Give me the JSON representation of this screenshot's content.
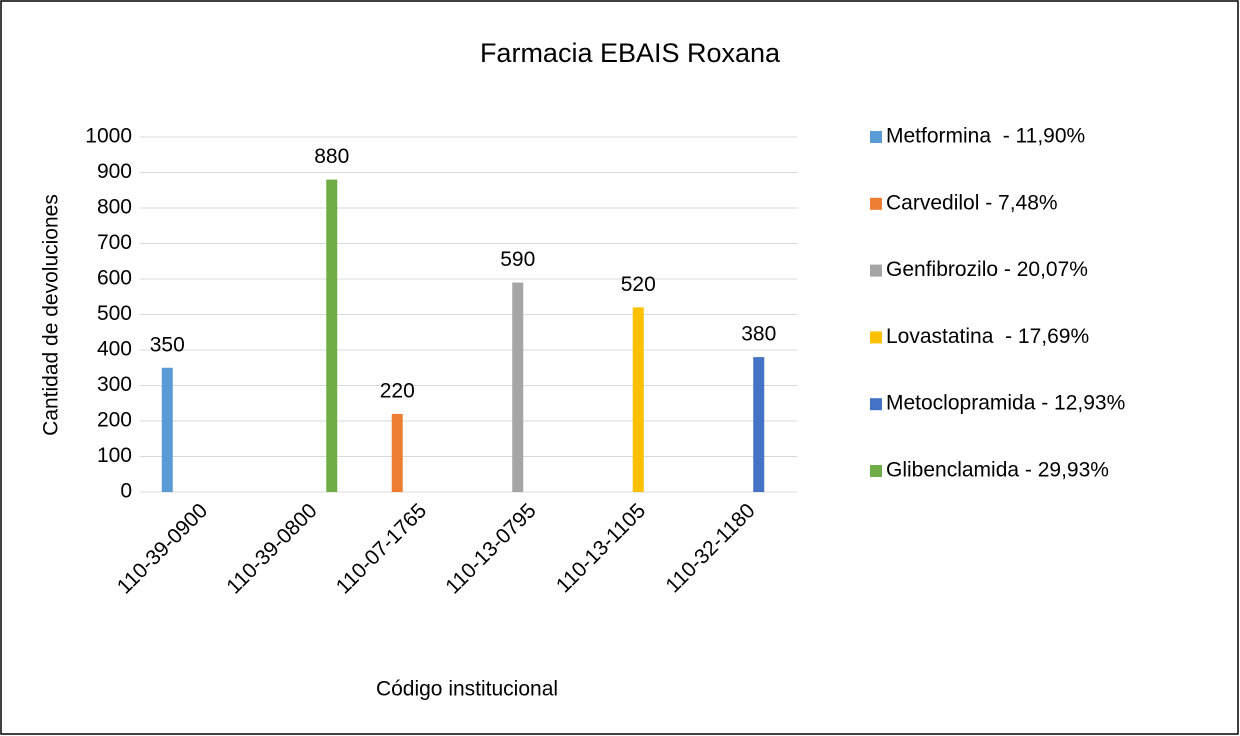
{
  "chart_data": {
    "type": "bar",
    "title": "Farmacia EBAIS Roxana",
    "xlabel": "Código institucional",
    "ylabel": "Cantidad de devoluciones",
    "categories": [
      "110-39-0900",
      "110-39-0800",
      "110-07-1765",
      "110-13-0795",
      "110-13-1105",
      "110-32-1180"
    ],
    "series": [
      {
        "name": "Metformina  - 11,90%",
        "color": "#5b9bd5",
        "values": [
          350,
          null,
          null,
          null,
          null,
          null
        ]
      },
      {
        "name": "Carvedilol - 7,48%",
        "color": "#ed7d31",
        "values": [
          null,
          null,
          220,
          null,
          null,
          null
        ]
      },
      {
        "name": "Genfibrozilo - 20,07%",
        "color": "#a5a5a5",
        "values": [
          null,
          null,
          null,
          590,
          null,
          null
        ]
      },
      {
        "name": "Lovastatina  - 17,69%",
        "color": "#ffc000",
        "values": [
          null,
          null,
          null,
          null,
          520,
          null
        ]
      },
      {
        "name": "Metoclopramida - 12,93%",
        "color": "#4472c4",
        "values": [
          null,
          null,
          null,
          null,
          null,
          380
        ]
      },
      {
        "name": "Glibenclamida - 29,93%",
        "color": "#70ad47",
        "values": [
          null,
          880,
          null,
          null,
          null,
          null
        ]
      }
    ],
    "ylim": [
      0,
      1000
    ],
    "yticks": [
      0,
      100,
      200,
      300,
      400,
      500,
      600,
      700,
      800,
      900,
      1000
    ],
    "grid": true,
    "legend": "right"
  }
}
